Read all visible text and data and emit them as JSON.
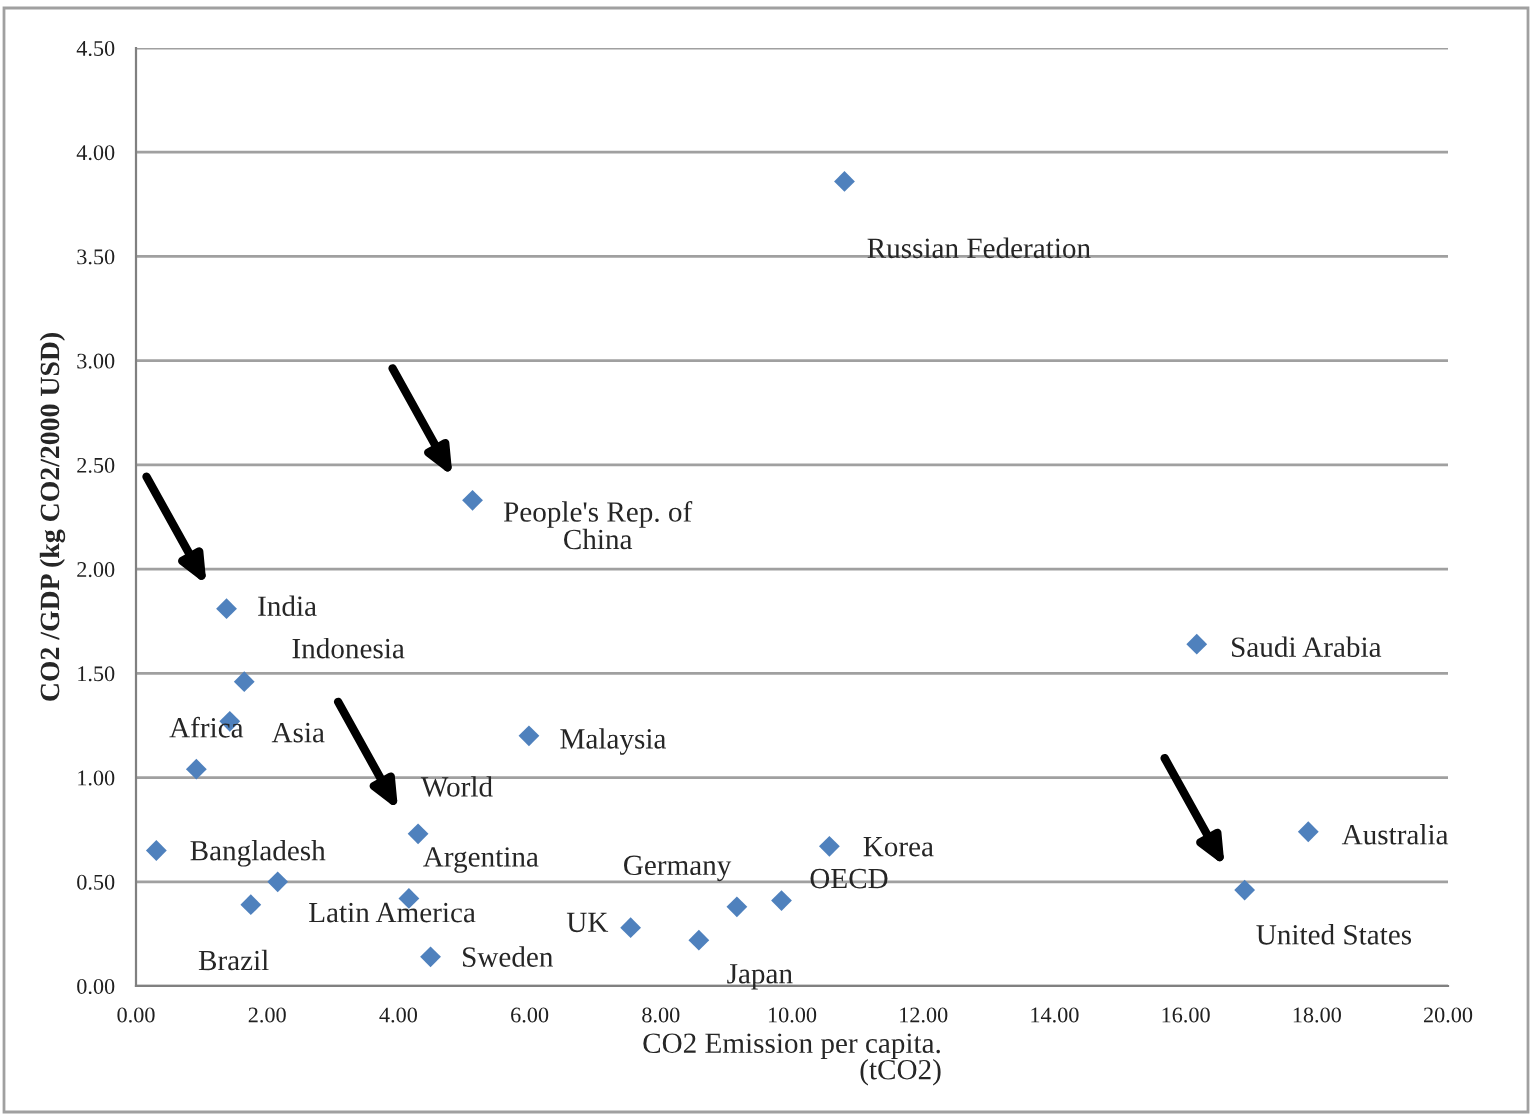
{
  "chart_data": {
    "type": "scatter",
    "xlabel": "CO2 Emission per capita.\n(tCO2)",
    "ylabel": "CO2 /GDP (kg CO2/2000 USD)",
    "series": [
      {
        "color": "#4f81bd",
        "x": [
          10.8,
          5.13,
          1.38,
          1.65,
          1.43,
          0.92,
          0.31,
          1.75,
          2.16,
          4.3,
          4.16,
          4.49,
          5.99,
          7.54,
          8.58,
          9.16,
          9.84,
          10.57,
          16.17,
          17.87,
          16.9
        ],
        "values": [
          3.86,
          2.33,
          1.81,
          1.46,
          1.27,
          1.04,
          0.65,
          0.39,
          0.5,
          0.73,
          0.42,
          0.14,
          1.2,
          0.28,
          0.22,
          0.38,
          0.41,
          0.67,
          1.64,
          0.74,
          0.46
        ]
      }
    ],
    "annotations": [
      {
        "text": "Russian Federation",
        "x": 10.8,
        "y": 3.86
      },
      {
        "text": "People's Rep. of\nChina",
        "x": 5.13,
        "y": 2.33
      },
      {
        "text": "India",
        "x": 1.38,
        "y": 1.81
      },
      {
        "text": "Indonesia",
        "x": 1.65,
        "y": 1.46
      },
      {
        "text": "Asia",
        "x": 1.43,
        "y": 1.27
      },
      {
        "text": "Africa",
        "x": 0.92,
        "y": 1.04
      },
      {
        "text": "Bangladesh",
        "x": 0.31,
        "y": 0.65
      },
      {
        "text": "Brazil",
        "x": 1.75,
        "y": 0.39
      },
      {
        "text": "Latin America",
        "x": 2.16,
        "y": 0.5
      },
      {
        "text": "World",
        "x": 4.3,
        "y": 0.73
      },
      {
        "text": "Argentina",
        "x": 4.16,
        "y": 0.42
      },
      {
        "text": "Sweden",
        "x": 4.49,
        "y": 0.14
      },
      {
        "text": "Malaysia",
        "x": 5.99,
        "y": 1.2
      },
      {
        "text": "UK",
        "x": 7.54,
        "y": 0.28
      },
      {
        "text": "Japan",
        "x": 8.58,
        "y": 0.22
      },
      {
        "text": "Germany",
        "x": 9.16,
        "y": 0.38
      },
      {
        "text": "OECD",
        "x": 9.84,
        "y": 0.41
      },
      {
        "text": "Korea",
        "x": 10.57,
        "y": 0.67
      },
      {
        "text": "Saudi Arabia",
        "x": 16.17,
        "y": 1.64
      },
      {
        "text": "Australia",
        "x": 17.87,
        "y": 0.74
      },
      {
        "text": "United States",
        "x": 16.9,
        "y": 0.46
      }
    ],
    "xlim": [
      0,
      20
    ],
    "xticks": [
      {
        "value": 0,
        "label": "0.00"
      },
      {
        "value": 2,
        "label": "2.00"
      },
      {
        "value": 4,
        "label": "4.00"
      },
      {
        "value": 6,
        "label": "6.00"
      },
      {
        "value": 8,
        "label": "8.00"
      },
      {
        "value": 10,
        "label": "10.00"
      },
      {
        "value": 12,
        "label": "12.00"
      },
      {
        "value": 14,
        "label": "14.00"
      },
      {
        "value": 16,
        "label": "16.00"
      },
      {
        "value": 18,
        "label": "18.00"
      },
      {
        "value": 20,
        "label": "20.00"
      }
    ],
    "ylim": [
      0,
      4.5
    ],
    "yticks": [
      {
        "value": 0,
        "label": "0.00"
      },
      {
        "value": 0.5,
        "label": "0.50"
      },
      {
        "value": 1,
        "label": "1.00"
      },
      {
        "value": 1.5,
        "label": "1.50"
      },
      {
        "value": 2,
        "label": "2.00"
      },
      {
        "value": 2.5,
        "label": "2.50"
      },
      {
        "value": 3,
        "label": "3.00"
      },
      {
        "value": 3.5,
        "label": "3.50"
      },
      {
        "value": 4,
        "label": "4.00"
      },
      {
        "value": 4.5,
        "label": "4.50"
      }
    ],
    "grid": "y",
    "marker": "diamond",
    "legend": false
  }
}
